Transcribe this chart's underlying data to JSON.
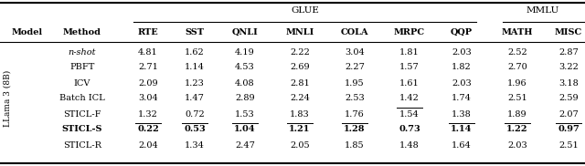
{
  "title_glue": "GLUE",
  "title_mmlu": "MMLU",
  "col_headers": [
    "Model",
    "Method",
    "RTE",
    "SST",
    "QNLI",
    "MNLI",
    "COLA",
    "MRPC",
    "QQP",
    "MATH",
    "MISC"
  ],
  "row_label": "LLama 3 (8B)",
  "rows": [
    {
      "method": "n-shot",
      "italic": true,
      "bold": false,
      "values": [
        "4.81",
        "1.62",
        "4.19",
        "2.22",
        "3.04",
        "1.81",
        "2.03",
        "2.52",
        "2.87"
      ],
      "underline": [
        false,
        false,
        false,
        false,
        false,
        false,
        false,
        false,
        false
      ]
    },
    {
      "method": "PBFT",
      "italic": false,
      "bold": false,
      "values": [
        "2.71",
        "1.14",
        "4.53",
        "2.69",
        "2.27",
        "1.57",
        "1.82",
        "2.70",
        "3.22"
      ],
      "underline": [
        false,
        false,
        false,
        false,
        false,
        false,
        false,
        false,
        false
      ]
    },
    {
      "method": "ICV",
      "italic": false,
      "bold": false,
      "values": [
        "2.09",
        "1.23",
        "4.08",
        "2.81",
        "1.95",
        "1.61",
        "2.03",
        "1.96",
        "3.18"
      ],
      "underline": [
        false,
        false,
        false,
        false,
        false,
        false,
        false,
        false,
        false
      ]
    },
    {
      "method": "Batch ICL",
      "italic": false,
      "bold": false,
      "values": [
        "3.04",
        "1.47",
        "2.89",
        "2.24",
        "2.53",
        "1.42",
        "1.74",
        "2.51",
        "2.59"
      ],
      "underline": [
        false,
        false,
        false,
        false,
        false,
        true,
        false,
        false,
        false
      ]
    },
    {
      "method": "STICL-F",
      "italic": false,
      "bold": false,
      "values": [
        "1.32",
        "0.72",
        "1.53",
        "1.83",
        "1.76",
        "1.54",
        "1.38",
        "1.89",
        "2.07"
      ],
      "underline": [
        true,
        true,
        true,
        true,
        true,
        false,
        true,
        true,
        true
      ]
    },
    {
      "method": "STICL-S",
      "italic": false,
      "bold": true,
      "values": [
        "0.22",
        "0.53",
        "1.04",
        "1.21",
        "1.28",
        "0.73",
        "1.14",
        "1.22",
        "0.97"
      ],
      "underline": [
        false,
        false,
        false,
        false,
        false,
        false,
        false,
        false,
        false
      ]
    },
    {
      "method": "STICL-R",
      "italic": false,
      "bold": false,
      "values": [
        "2.04",
        "1.34",
        "2.47",
        "2.05",
        "1.85",
        "1.48",
        "1.64",
        "2.03",
        "2.51"
      ],
      "underline": [
        false,
        false,
        false,
        false,
        false,
        false,
        false,
        false,
        false
      ]
    }
  ],
  "figsize": [
    6.4,
    1.82
  ],
  "dpi": 100,
  "fs": 7.0
}
